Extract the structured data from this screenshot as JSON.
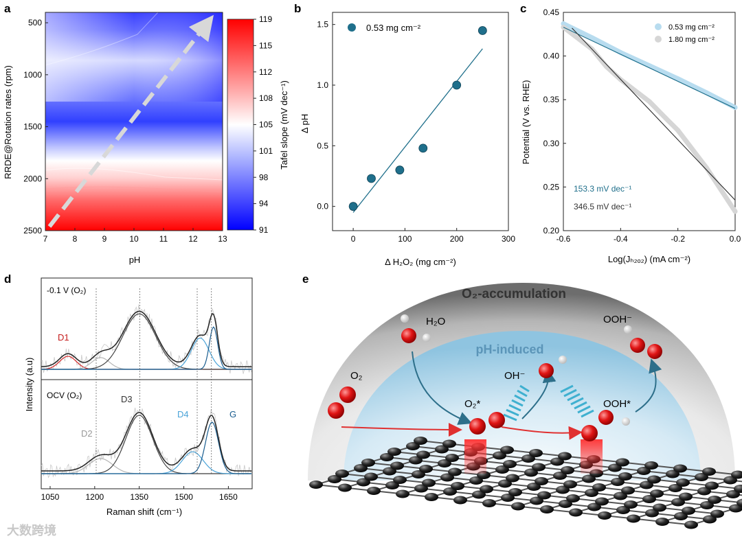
{
  "panel_letters": {
    "a": "a",
    "b": "b",
    "c": "c",
    "d": "d",
    "e": "e"
  },
  "colors": {
    "teal": "#1f6f8b",
    "light_blue": "#b8dcef",
    "light_gray": "#d6d6d6",
    "dark_line": "#333333",
    "heat_low": "#1020ff",
    "heat_mid": "#ffffff",
    "heat_high": "#ff0a0a",
    "red_accent": "#c41a1a",
    "d1_red": "#d62828",
    "d4_blue": "#4aa3d8",
    "g_navy": "#1a5d8f"
  },
  "chart_data": [
    {
      "id": "a",
      "type": "heatmap",
      "xlabel": "pH",
      "ylabel": "RRDE@Rotation rates (rpm)",
      "xlim": [
        7,
        13
      ],
      "ylim": [
        2500,
        400
      ],
      "xticks": [
        "7",
        "8",
        "9",
        "10",
        "11",
        "12",
        "13"
      ],
      "yticks": [
        "500",
        "1000",
        "1500",
        "2000",
        "2500"
      ],
      "colorbar": {
        "label": "Tafel slope (mV dec⁻¹)",
        "ticks": [
          "119",
          "115",
          "112",
          "108",
          "105",
          "101",
          "98",
          "94",
          "91"
        ],
        "range": [
          91,
          119
        ]
      },
      "regions": [
        {
          "rpm_from": 400,
          "rpm_to": 1500,
          "tafel": "low (91-101)"
        },
        {
          "rpm_from": 1800,
          "rpm_to": 2000,
          "tafel": "mid (105)"
        },
        {
          "rpm_from": 2000,
          "rpm_to": 2500,
          "tafel": "high (112-119)"
        }
      ]
    },
    {
      "id": "b",
      "type": "scatter",
      "xlabel": "Δ H₂O₂ (mg cm⁻²)",
      "ylabel": "Δ pH",
      "xlim": [
        -40,
        300
      ],
      "ylim": [
        -0.2,
        1.6
      ],
      "xticks": [
        "0",
        "100",
        "200",
        "300"
      ],
      "yticks": [
        "0.0",
        "0.5",
        "1.0",
        "1.5"
      ],
      "legend": "0.53 mg cm⁻²",
      "points": [
        {
          "x": 0,
          "y": 0.0
        },
        {
          "x": 35,
          "y": 0.23
        },
        {
          "x": 90,
          "y": 0.3
        },
        {
          "x": 135,
          "y": 0.48
        },
        {
          "x": 200,
          "y": 1.0
        },
        {
          "x": 250,
          "y": 1.45
        }
      ],
      "fit": {
        "x": [
          0,
          250
        ],
        "y": [
          -0.05,
          1.3
        ]
      }
    },
    {
      "id": "c",
      "type": "line",
      "xlabel": "Log(Jₕ₂ₒ₂) (mA cm⁻²)",
      "ylabel": "Potential (V vs. RHE)",
      "xlim": [
        -0.6,
        0.0
      ],
      "ylim": [
        0.2,
        0.45
      ],
      "xticks": [
        "-0.6",
        "-0.4",
        "-0.2",
        "0.0"
      ],
      "yticks": [
        "0.45",
        "0.40",
        "0.35",
        "0.30",
        "0.25",
        "0.20"
      ],
      "series": [
        {
          "name": "0.53 mg cm⁻²",
          "x": [
            -0.6,
            -0.5,
            -0.4,
            -0.3,
            -0.2,
            -0.1,
            0.0
          ],
          "y": [
            0.437,
            0.421,
            0.404,
            0.389,
            0.374,
            0.358,
            0.341
          ]
        },
        {
          "name": "1.80 mg cm⁻²",
          "x": [
            -0.6,
            -0.5,
            -0.45,
            -0.4,
            -0.3,
            -0.24,
            -0.2,
            -0.1,
            0.0
          ],
          "y": [
            0.433,
            0.408,
            0.388,
            0.373,
            0.348,
            0.328,
            0.315,
            0.272,
            0.222
          ]
        }
      ],
      "fits": [
        {
          "x": [
            -0.6,
            0.0
          ],
          "y": [
            0.433,
            0.34
          ]
        },
        {
          "x": [
            -0.57,
            0.0
          ],
          "y": [
            0.432,
            0.235
          ]
        }
      ],
      "annotations": [
        "153.3 mV dec⁻¹",
        "346.5 mV dec⁻¹"
      ]
    },
    {
      "id": "d",
      "type": "line",
      "xlabel": "Raman shift (cm⁻¹)",
      "ylabel": "Intensity (a.u)",
      "xlim": [
        1020,
        1730
      ],
      "xticks": [
        "1050",
        "1200",
        "1350",
        "1500",
        "1650"
      ],
      "spectra": [
        {
          "name": "-0.1 V (O₂)",
          "peaks": [
            "D1"
          ],
          "peak_positions": [
            1110,
            1220,
            1350,
            1555,
            1600
          ]
        },
        {
          "name": "OCV (O₂)",
          "peaks": [
            "D2",
            "D3",
            "D4",
            "G"
          ],
          "peak_positions": [
            1220,
            1350,
            1530,
            1595
          ]
        }
      ]
    }
  ],
  "panel_e": {
    "title": "O₂-accumulation",
    "subtitle": "pH-induced",
    "labels": {
      "h2o": "H₂O",
      "o2": "O₂",
      "o2_star": "O₂*",
      "oh_minus": "OH⁻",
      "ooh_star": "OOH*",
      "ooh_minus": "OOH⁻"
    }
  },
  "watermark": "大数跨境"
}
